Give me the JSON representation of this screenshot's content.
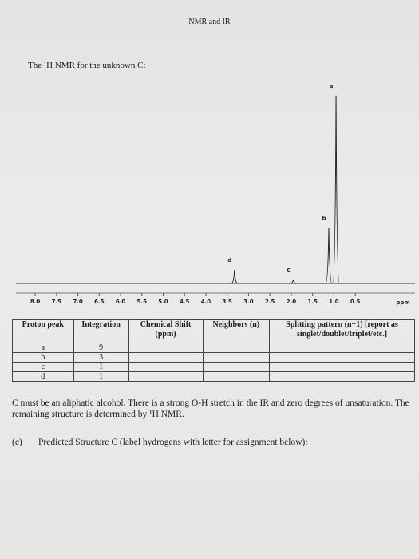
{
  "header": {
    "title": "NMR and IR"
  },
  "intro": "The ¹H NMR for the unknown C:",
  "spectrum": {
    "xticks": [
      {
        "value": 8,
        "label": "8.0"
      },
      7.5,
      {
        "value": 7,
        "label": "7.0"
      },
      6.5,
      {
        "value": 6,
        "label": "6.0"
      },
      5.5,
      {
        "value": 5,
        "label": "5.0"
      },
      4.5,
      {
        "value": 4,
        "label": "4.0"
      },
      3.5,
      {
        "value": 3,
        "label": "3.0"
      },
      2.5,
      {
        "value": 2,
        "label": "2.0"
      },
      1.5,
      {
        "value": 1,
        "label": "1.0"
      },
      0.5
    ],
    "xlim": [
      8.45,
      -0.9
    ],
    "ylim": [
      0,
      100
    ],
    "unit": "ppm",
    "peaks": [
      {
        "label": "a",
        "shift": 0.95,
        "intensity": 98
      },
      {
        "label": "b",
        "shift": 1.12,
        "intensity": 29
      },
      {
        "label": "c",
        "shift": 1.95,
        "intensity": 2
      },
      {
        "label": "d",
        "shift": 3.33,
        "intensity": 7
      }
    ]
  },
  "table": {
    "header": [
      "Proton peak",
      "Integration",
      "Chemical Shift (ppm)",
      "Neighbors (n)",
      "Splitting pattern (n+1) [report as singlet/doublet/triplet/etc.]"
    ],
    "rows": [
      [
        "a",
        "9"
      ],
      [
        "b",
        "3"
      ],
      [
        "c",
        "1"
      ],
      [
        "d",
        "1"
      ]
    ]
  },
  "note": "C must be an aliphatic alcohol. There is a strong O-H stretch in the IR and zero degrees of unsaturation. The remaining structure is determined by ¹H NMR.",
  "question": {
    "number": "(c)",
    "text": "Predicted Structure C (label hydrogens with letter for assignment below):"
  }
}
